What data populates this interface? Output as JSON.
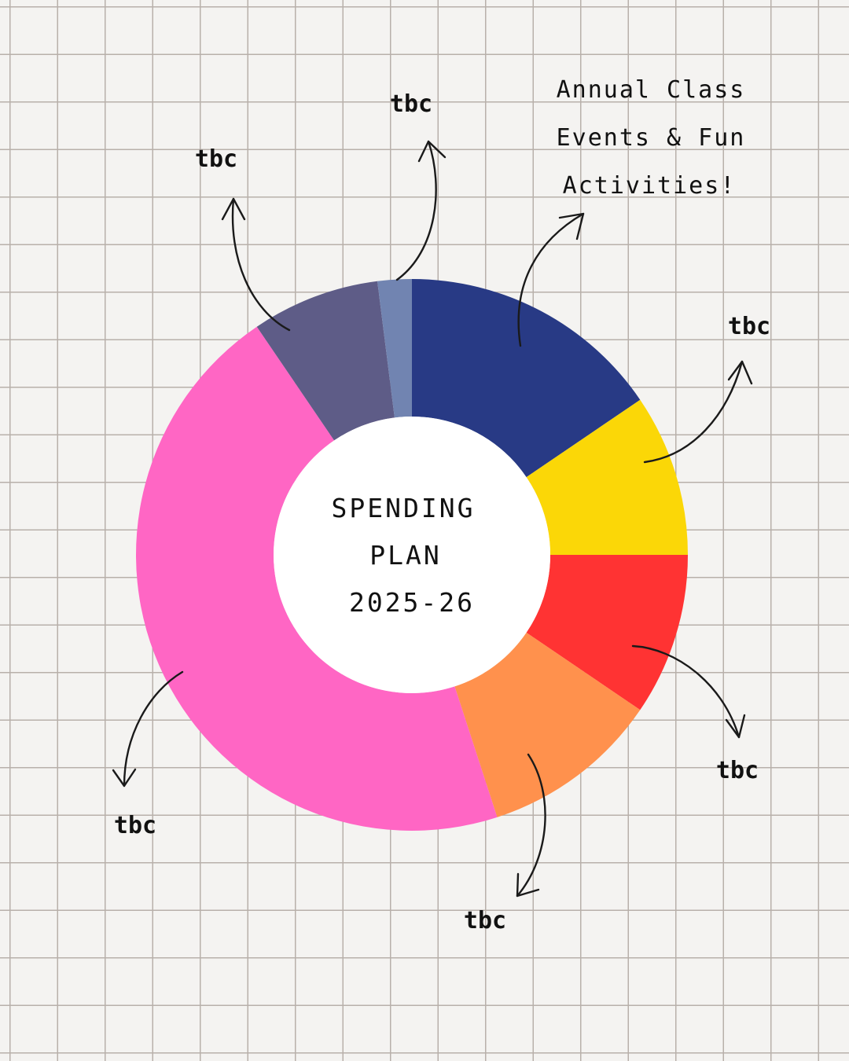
{
  "chart_data": {
    "type": "pie",
    "donut": true,
    "title_lines": [
      "SPENDING",
      "PLAN",
      "2025-26"
    ],
    "slices": [
      {
        "label": "Annual Class Events & Fun Activities!",
        "value": 15.5,
        "color": "#283a85"
      },
      {
        "label": "tbc",
        "value": 9.5,
        "color": "#fbd707"
      },
      {
        "label": "tbc",
        "value": 9.5,
        "color": "#ff3333"
      },
      {
        "label": "tbc",
        "value": 10.5,
        "color": "#ff914d"
      },
      {
        "label": "tbc",
        "value": 45.5,
        "color": "#ff66c4"
      },
      {
        "label": "tbc",
        "value": 7.5,
        "color": "#5e5c87"
      },
      {
        "label": "tbc",
        "value": 2.0,
        "color": "#7184b1"
      }
    ],
    "legend": "none"
  },
  "annotation_title_lines": [
    "Annual Class",
    "Events & Fun",
    "Activities!"
  ]
}
